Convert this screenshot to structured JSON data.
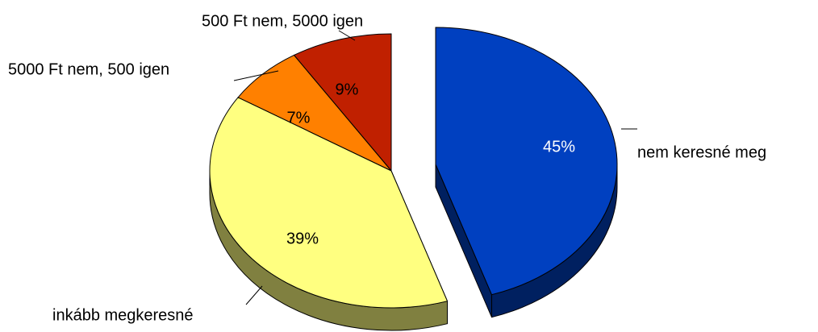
{
  "chart_data": {
    "type": "pie",
    "categories": [
      "nem keresné meg",
      "inkább megkeresné",
      "5000 Ft nem, 500 igen",
      "500 Ft nem, 5000 igen"
    ],
    "values": [
      45,
      39,
      7,
      9
    ],
    "value_labels": [
      "45%",
      "39%",
      "7%",
      "9%"
    ],
    "colors": [
      "#0040c0",
      "#ffff80",
      "#ff8000",
      "#c02000"
    ]
  }
}
